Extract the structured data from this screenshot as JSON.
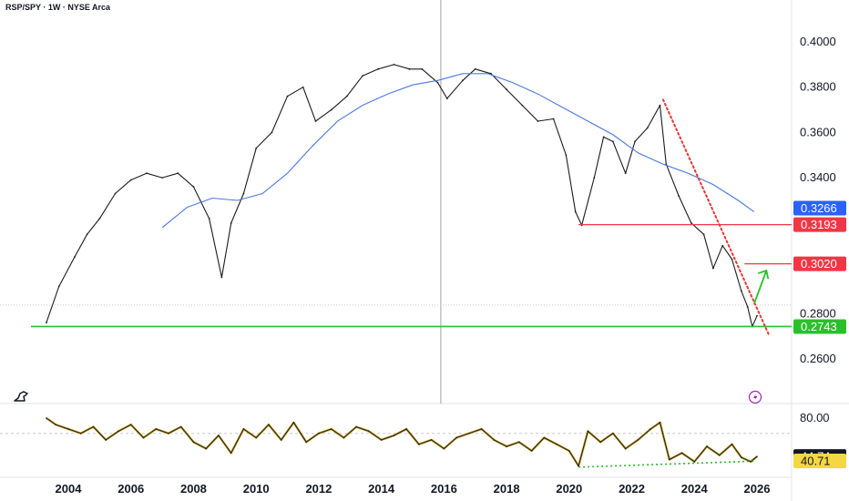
{
  "header": {
    "symbol": "RSP/SPY · 1W · NYSE Arca"
  },
  "colors": {
    "price_line": "#1b1b1b",
    "ma_line": "#4a78e0",
    "support_green": "#2bc02b",
    "resistance_red": "#f23645",
    "trend_red": "#e53935",
    "arrow_green": "#22c322",
    "rsi_line": "#1f1f1f",
    "rsi_band": "#c9a227",
    "rsi_trend": "#2bb42b",
    "grid_dash": "#c8c8c8"
  },
  "chart_data": [
    {
      "type": "line",
      "name": "main-price-pane",
      "x_unit": "year",
      "xlim": [
        2003.0,
        2026.6
      ],
      "ylim": [
        0.255,
        0.412
      ],
      "y_ticks": [
        "0.4000",
        "0.3800",
        "0.3600",
        "0.3400",
        "0.2800",
        "0.2600"
      ],
      "y_tick_values": [
        0.4,
        0.38,
        0.36,
        0.34,
        0.28,
        0.26
      ],
      "series": [
        {
          "role": "price",
          "x": [
            2003.3,
            2003.7,
            2004.2,
            2004.6,
            2005.0,
            2005.5,
            2006.0,
            2006.5,
            2007.0,
            2007.5,
            2008.0,
            2008.5,
            2008.9,
            2009.2,
            2009.6,
            2010.0,
            2010.5,
            2011.0,
            2011.5,
            2011.9,
            2012.4,
            2012.9,
            2013.4,
            2013.9,
            2014.4,
            2014.9,
            2015.3,
            2015.8,
            2016.1,
            2016.6,
            2017.0,
            2017.5,
            2018.0,
            2018.5,
            2019.0,
            2019.5,
            2019.9,
            2020.2,
            2020.4,
            2020.8,
            2021.1,
            2021.4,
            2021.8,
            2022.1,
            2022.5,
            2022.9,
            2023.1,
            2023.5,
            2023.9,
            2024.3,
            2024.6,
            2024.9,
            2025.2,
            2025.5,
            2025.7,
            2025.85,
            2026.0
          ],
          "y": [
            0.276,
            0.292,
            0.305,
            0.315,
            0.322,
            0.333,
            0.339,
            0.342,
            0.34,
            0.342,
            0.336,
            0.322,
            0.296,
            0.32,
            0.333,
            0.353,
            0.36,
            0.376,
            0.38,
            0.365,
            0.37,
            0.376,
            0.385,
            0.388,
            0.39,
            0.388,
            0.388,
            0.382,
            0.375,
            0.383,
            0.388,
            0.386,
            0.379,
            0.372,
            0.365,
            0.366,
            0.35,
            0.325,
            0.319,
            0.34,
            0.358,
            0.356,
            0.342,
            0.356,
            0.362,
            0.372,
            0.346,
            0.332,
            0.32,
            0.315,
            0.3,
            0.31,
            0.304,
            0.29,
            0.283,
            0.2743,
            0.279
          ]
        },
        {
          "role": "moving-average",
          "x": [
            2007.0,
            2007.8,
            2008.6,
            2009.4,
            2010.2,
            2011.0,
            2011.8,
            2012.6,
            2013.4,
            2014.2,
            2015.0,
            2015.8,
            2016.6,
            2017.4,
            2018.2,
            2019.0,
            2019.8,
            2020.6,
            2021.4,
            2022.2,
            2023.0,
            2023.8,
            2024.6,
            2025.4,
            2025.9
          ],
          "y": [
            0.318,
            0.327,
            0.331,
            0.33,
            0.333,
            0.342,
            0.354,
            0.365,
            0.372,
            0.377,
            0.381,
            0.383,
            0.386,
            0.386,
            0.382,
            0.377,
            0.371,
            0.365,
            0.359,
            0.351,
            0.346,
            0.342,
            0.337,
            0.33,
            0.325
          ]
        }
      ],
      "levels": [
        {
          "role": "ma-last",
          "value": 0.3266,
          "label": "0.3266",
          "tag_color": "#2962ff"
        },
        {
          "role": "resistance-1",
          "value": 0.3193,
          "label": "0.3193",
          "tag_color": "#f23645",
          "from_x": 2020.3
        },
        {
          "role": "resistance-2",
          "value": 0.302,
          "label": "0.3020",
          "tag_color": "#f23645",
          "from_x": 2025.6
        },
        {
          "role": "support",
          "value": 0.2743,
          "label": "0.2743",
          "tag_color": "#2bc02b",
          "from_x": 2003.0
        }
      ],
      "trendline": {
        "x": [
          2023.0,
          2026.4
        ],
        "y": [
          0.3745,
          0.27
        ],
        "style": "dotted"
      },
      "arrow": {
        "x": [
          2025.9,
          2026.3
        ],
        "y": [
          0.284,
          0.299
        ]
      },
      "cursor_x": 2015.9
    },
    {
      "type": "line",
      "name": "rsi-pane",
      "x_unit": "year",
      "xlim": [
        2003.0,
        2026.6
      ],
      "ylim": [
        22,
        90
      ],
      "y_ticks": [
        "80.00"
      ],
      "y_tick_values": [
        80
      ],
      "series": [
        {
          "role": "rsi",
          "x": [
            2003.3,
            2003.6,
            2004.0,
            2004.4,
            2004.8,
            2005.2,
            2005.6,
            2006.0,
            2006.4,
            2006.8,
            2007.2,
            2007.6,
            2008.0,
            2008.4,
            2008.8,
            2009.2,
            2009.6,
            2010.0,
            2010.4,
            2010.8,
            2011.2,
            2011.6,
            2012.0,
            2012.4,
            2012.8,
            2013.2,
            2013.6,
            2014.0,
            2014.4,
            2014.8,
            2015.2,
            2015.6,
            2016.0,
            2016.4,
            2016.8,
            2017.2,
            2017.6,
            2018.0,
            2018.4,
            2018.8,
            2019.2,
            2019.6,
            2020.0,
            2020.3,
            2020.6,
            2021.0,
            2021.4,
            2021.8,
            2022.2,
            2022.6,
            2022.9,
            2023.2,
            2023.6,
            2024.0,
            2024.4,
            2024.8,
            2025.2,
            2025.5,
            2025.8,
            2026.0
          ],
          "y": [
            80,
            74,
            70,
            66,
            72,
            60,
            68,
            74,
            62,
            70,
            66,
            72,
            58,
            52,
            64,
            48,
            70,
            62,
            74,
            60,
            76,
            58,
            66,
            70,
            62,
            72,
            68,
            60,
            64,
            70,
            56,
            60,
            52,
            62,
            66,
            70,
            60,
            54,
            58,
            50,
            62,
            56,
            50,
            36,
            68,
            58,
            66,
            52,
            60,
            70,
            76,
            42,
            48,
            40,
            54,
            46,
            56,
            44,
            40,
            44.74
          ]
        },
        {
          "role": "rsi-average",
          "x": [
            2003.3,
            2005.0,
            2007.0,
            2009.0,
            2011.0,
            2013.0,
            2015.0,
            2017.0,
            2019.0,
            2020.3,
            2021.5,
            2023.0,
            2024.5,
            2026.0
          ],
          "y": [
            76,
            68,
            66,
            60,
            66,
            64,
            60,
            62,
            54,
            46,
            58,
            62,
            46,
            40.71
          ]
        }
      ],
      "levels": [
        {
          "role": "rsi-last",
          "value": 44.74,
          "label": "44.74",
          "tag_color": "#131722"
        },
        {
          "role": "rsi-avg-last",
          "value": 40.71,
          "label": "40.71",
          "tag_color": "#f5d743"
        }
      ],
      "trendline": {
        "x": [
          2020.3,
          2025.9
        ],
        "y": [
          35,
          40.5
        ],
        "style": "dotted"
      }
    }
  ],
  "x_axis": {
    "ticks": [
      2004,
      2006,
      2008,
      2010,
      2012,
      2014,
      2016,
      2018,
      2020,
      2022,
      2024,
      2026
    ],
    "labels": [
      "2004",
      "2006",
      "2008",
      "2010",
      "2012",
      "2014",
      "2016",
      "2018",
      "2020",
      "2022",
      "2024",
      "2026"
    ]
  }
}
